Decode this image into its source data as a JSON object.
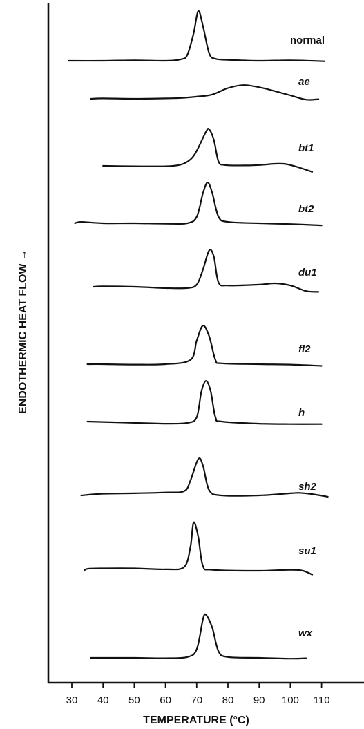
{
  "chart_data": {
    "type": "line",
    "title": "",
    "xlabel": "TEMPERATURE (°C)",
    "ylabel": "ENDOTHERMIC HEAT FLOW →",
    "x_ticks": [
      30,
      40,
      50,
      60,
      70,
      80,
      90,
      100,
      110
    ],
    "xlim": [
      25,
      115
    ],
    "grid": false,
    "series": [
      {
        "name": "normal",
        "points": [
          [
            29,
            0.0
          ],
          [
            40,
            0.0
          ],
          [
            50,
            0.01
          ],
          [
            60,
            0.0
          ],
          [
            65,
            0.03
          ],
          [
            67,
            0.12
          ],
          [
            69,
            0.55
          ],
          [
            70.5,
            1.0
          ],
          [
            72,
            0.7
          ],
          [
            74,
            0.15
          ],
          [
            76,
            0.04
          ],
          [
            80,
            0.02
          ],
          [
            90,
            0.0
          ],
          [
            100,
            0.01
          ],
          [
            111,
            -0.01
          ]
        ]
      },
      {
        "name": "ae",
        "points": [
          [
            36,
            0.0
          ],
          [
            40,
            0.01
          ],
          [
            50,
            0.0
          ],
          [
            60,
            0.01
          ],
          [
            65,
            0.02
          ],
          [
            70,
            0.05
          ],
          [
            75,
            0.1
          ],
          [
            80,
            0.25
          ],
          [
            85,
            0.32
          ],
          [
            90,
            0.27
          ],
          [
            95,
            0.18
          ],
          [
            100,
            0.08
          ],
          [
            105,
            -0.02
          ],
          [
            109,
            -0.01
          ]
        ]
      },
      {
        "name": "bt1",
        "points": [
          [
            40,
            0.0
          ],
          [
            50,
            -0.01
          ],
          [
            60,
            -0.01
          ],
          [
            65,
            0.03
          ],
          [
            68,
            0.15
          ],
          [
            70,
            0.35
          ],
          [
            73,
            0.8
          ],
          [
            74,
            0.85
          ],
          [
            75.5,
            0.6
          ],
          [
            77,
            0.1
          ],
          [
            79,
            0.02
          ],
          [
            85,
            0.01
          ],
          [
            90,
            0.02
          ],
          [
            96,
            0.05
          ],
          [
            100,
            0.02
          ],
          [
            107,
            -0.14
          ]
        ]
      },
      {
        "name": "bt2",
        "points": [
          [
            31,
            0.0
          ],
          [
            33,
            0.03
          ],
          [
            40,
            0.0
          ],
          [
            50,
            0.0
          ],
          [
            60,
            -0.01
          ],
          [
            67,
            0.0
          ],
          [
            70,
            0.15
          ],
          [
            72,
            0.7
          ],
          [
            73.5,
            0.95
          ],
          [
            75,
            0.7
          ],
          [
            77,
            0.15
          ],
          [
            80,
            0.03
          ],
          [
            90,
            0.0
          ],
          [
            100,
            -0.02
          ],
          [
            110,
            -0.05
          ]
        ]
      },
      {
        "name": "du1",
        "points": [
          [
            37,
            0.0
          ],
          [
            40,
            0.01
          ],
          [
            50,
            0.0
          ],
          [
            60,
            -0.03
          ],
          [
            67,
            -0.03
          ],
          [
            70,
            0.05
          ],
          [
            72,
            0.4
          ],
          [
            74,
            0.85
          ],
          [
            75.5,
            0.7
          ],
          [
            77,
            0.1
          ],
          [
            80,
            0.03
          ],
          [
            90,
            0.05
          ],
          [
            95,
            0.08
          ],
          [
            100,
            0.03
          ],
          [
            105,
            -0.1
          ],
          [
            109,
            -0.12
          ]
        ]
      },
      {
        "name": "fl2",
        "points": [
          [
            35,
            0.0
          ],
          [
            40,
            0.0
          ],
          [
            50,
            -0.01
          ],
          [
            60,
            0.0
          ],
          [
            68,
            0.1
          ],
          [
            70,
            0.55
          ],
          [
            72,
            0.9
          ],
          [
            74,
            0.65
          ],
          [
            76,
            0.1
          ],
          [
            78,
            0.02
          ],
          [
            90,
            0.0
          ],
          [
            100,
            -0.01
          ],
          [
            110,
            -0.04
          ]
        ]
      },
      {
        "name": "h",
        "points": [
          [
            35,
            0.0
          ],
          [
            40,
            -0.01
          ],
          [
            50,
            -0.03
          ],
          [
            60,
            -0.05
          ],
          [
            67,
            -0.03
          ],
          [
            70,
            0.1
          ],
          [
            71.5,
            0.7
          ],
          [
            73,
            0.95
          ],
          [
            74.5,
            0.7
          ],
          [
            76,
            0.1
          ],
          [
            78,
            0.0
          ],
          [
            90,
            -0.05
          ],
          [
            100,
            -0.06
          ],
          [
            110,
            -0.06
          ]
        ]
      },
      {
        "name": "sh2",
        "points": [
          [
            33,
            0.0
          ],
          [
            40,
            0.04
          ],
          [
            50,
            0.05
          ],
          [
            60,
            0.07
          ],
          [
            66,
            0.1
          ],
          [
            68,
            0.35
          ],
          [
            70.5,
            0.85
          ],
          [
            72,
            0.7
          ],
          [
            74,
            0.12
          ],
          [
            78,
            0.0
          ],
          [
            90,
            0.0
          ],
          [
            100,
            0.05
          ],
          [
            103,
            0.06
          ],
          [
            107,
            0.03
          ],
          [
            112,
            -0.03
          ]
        ]
      },
      {
        "name": "su1",
        "points": [
          [
            34,
            0.0
          ],
          [
            35,
            0.04
          ],
          [
            40,
            0.05
          ],
          [
            50,
            0.05
          ],
          [
            60,
            0.03
          ],
          [
            66,
            0.08
          ],
          [
            68,
            0.5
          ],
          [
            69,
            1.0
          ],
          [
            70.5,
            0.7
          ],
          [
            72,
            0.1
          ],
          [
            75,
            0.02
          ],
          [
            90,
            0.0
          ],
          [
            100,
            0.02
          ],
          [
            104,
            0.0
          ],
          [
            107,
            -0.08
          ]
        ]
      },
      {
        "name": "wx",
        "points": [
          [
            36,
            0.0
          ],
          [
            40,
            0.0
          ],
          [
            50,
            0.0
          ],
          [
            60,
            -0.01
          ],
          [
            67,
            0.02
          ],
          [
            70,
            0.2
          ],
          [
            72,
            0.9
          ],
          [
            73,
            1.0
          ],
          [
            75,
            0.7
          ],
          [
            77,
            0.15
          ],
          [
            80,
            0.02
          ],
          [
            90,
            0.0
          ],
          [
            100,
            -0.02
          ],
          [
            105,
            -0.01
          ]
        ]
      }
    ]
  }
}
